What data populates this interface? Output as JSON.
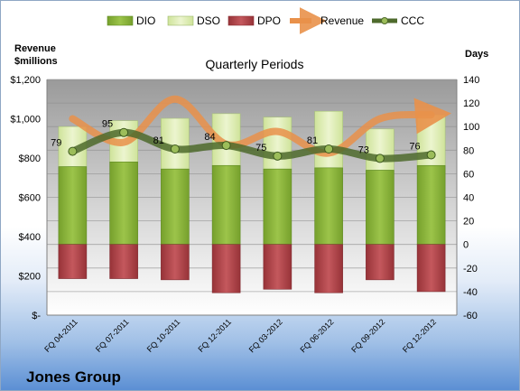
{
  "chart_data": {
    "type": "bar",
    "title": "Quarterly Periods",
    "company": "Jones Group",
    "y_left_label_line1": "Revenue",
    "y_left_label_line2": "$millions",
    "y_right_label": "Days",
    "categories": [
      "FQ 04-2011",
      "FQ 07-2011",
      "FQ 10-2011",
      "FQ 12-2011",
      "FQ 03-2012",
      "FQ 06-2012",
      "FQ 09-2012",
      "FQ 12-2012"
    ],
    "y_left_ticks": [
      "$-",
      "$200",
      "$400",
      "$600",
      "$800",
      "$1,000",
      "$1,200"
    ],
    "y_left_range": [
      0,
      1200
    ],
    "y_right_ticks": [
      "-60",
      "-40",
      "-20",
      "0",
      "20",
      "40",
      "60",
      "80",
      "100",
      "120",
      "140"
    ],
    "y_right_range": [
      -60,
      140
    ],
    "grid": true,
    "legend_position": "top",
    "series": [
      {
        "name": "DIO",
        "kind": "bar",
        "axis": "right",
        "color": "#8cb33c",
        "values": [
          66,
          70,
          64,
          67,
          64,
          65,
          63,
          67
        ]
      },
      {
        "name": "DSO",
        "kind": "bar",
        "axis": "right",
        "color": "#dcebb4",
        "values": [
          34,
          35,
          43,
          44,
          44,
          48,
          35,
          43
        ]
      },
      {
        "name": "DPO",
        "kind": "bar",
        "axis": "right",
        "color": "#b0454a",
        "values": [
          -29,
          -29,
          -30,
          -41,
          -38,
          -41,
          -30,
          -40
        ]
      },
      {
        "name": "Revenue",
        "kind": "line",
        "axis": "left",
        "color": "#e9914a",
        "values": [
          1000,
          880,
          1100,
          870,
          935,
          825,
          1000,
          1020
        ]
      },
      {
        "name": "CCC",
        "kind": "line",
        "axis": "right",
        "color": "#4e6a2c",
        "values": [
          79,
          95,
          81,
          84,
          75,
          81,
          73,
          76
        ]
      }
    ],
    "data_labels": [
      "79",
      "95",
      "81",
      "84",
      "75",
      "81",
      "73",
      "76"
    ]
  }
}
